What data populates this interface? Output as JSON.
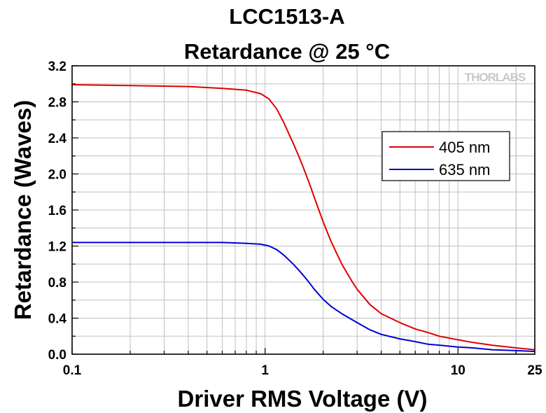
{
  "chart_data": {
    "type": "line",
    "title": "LCC1513-A",
    "subtitle": "Retardance @ 25 °C",
    "xlabel": "Driver RMS Voltage (V)",
    "ylabel": "Retardance (Waves)",
    "xscale": "log",
    "xlim": [
      0.1,
      25
    ],
    "ylim": [
      0.0,
      3.2
    ],
    "xticks": [
      0.1,
      1,
      10,
      25
    ],
    "xtick_labels": [
      "0.1",
      "1",
      "10",
      "25"
    ],
    "yticks": [
      0.0,
      0.4,
      0.8,
      1.2,
      1.6,
      2.0,
      2.4,
      2.8,
      3.2
    ],
    "ytick_labels": [
      "0.0",
      "0.4",
      "0.8",
      "1.2",
      "1.6",
      "2.0",
      "2.4",
      "2.8",
      "3.2"
    ],
    "grid": true,
    "legend_position": "upper-right",
    "logo": "THORLABS",
    "series": [
      {
        "name": "405 nm",
        "color": "#e00000",
        "x": [
          0.1,
          0.2,
          0.4,
          0.6,
          0.8,
          0.95,
          1.05,
          1.15,
          1.25,
          1.3,
          1.4,
          1.5,
          1.6,
          1.7,
          1.8,
          1.9,
          2.0,
          2.2,
          2.5,
          2.8,
          3.0,
          3.5,
          4.0,
          5.0,
          6.0,
          7.0,
          8.0,
          10.0,
          12.0,
          15.0,
          20.0,
          25.0
        ],
        "y": [
          2.99,
          2.98,
          2.97,
          2.95,
          2.93,
          2.89,
          2.83,
          2.72,
          2.57,
          2.49,
          2.34,
          2.19,
          2.04,
          1.89,
          1.74,
          1.6,
          1.47,
          1.25,
          1.0,
          0.82,
          0.72,
          0.55,
          0.45,
          0.35,
          0.28,
          0.24,
          0.2,
          0.16,
          0.13,
          0.1,
          0.07,
          0.05
        ]
      },
      {
        "name": "635 nm",
        "color": "#0000d8",
        "x": [
          0.1,
          0.2,
          0.4,
          0.6,
          0.8,
          0.95,
          1.05,
          1.15,
          1.25,
          1.4,
          1.5,
          1.6,
          1.7,
          1.8,
          2.0,
          2.2,
          2.5,
          3.0,
          3.5,
          4.0,
          5.0,
          6.0,
          7.0,
          8.0,
          10.0,
          12.0,
          15.0,
          20.0,
          25.0
        ],
        "y": [
          1.24,
          1.24,
          1.24,
          1.24,
          1.23,
          1.22,
          1.2,
          1.16,
          1.1,
          1.0,
          0.93,
          0.86,
          0.79,
          0.72,
          0.61,
          0.53,
          0.45,
          0.35,
          0.27,
          0.22,
          0.17,
          0.14,
          0.11,
          0.1,
          0.08,
          0.07,
          0.05,
          0.04,
          0.03
        ]
      }
    ]
  }
}
